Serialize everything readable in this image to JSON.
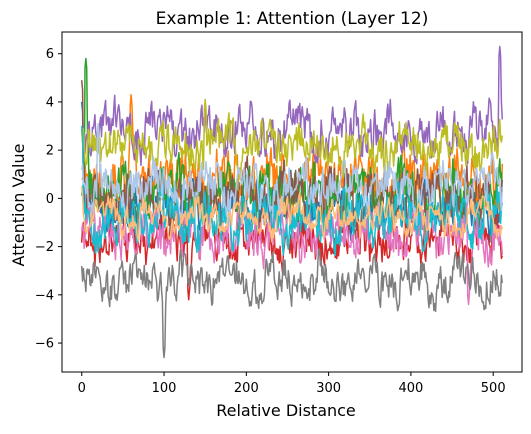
{
  "chart_data": {
    "type": "line",
    "title": "Example 1: Attention (Layer 12)",
    "xlabel": "Relative Distance",
    "ylabel": "Attention Value",
    "xlim": [
      -24,
      535
    ],
    "ylim": [
      -7.2,
      6.9
    ],
    "x_ticks": [
      0,
      100,
      200,
      300,
      400,
      500
    ],
    "y_ticks": [
      -6,
      -4,
      -2,
      0,
      2,
      4,
      6
    ],
    "y_tick_labels": [
      "−6",
      "−4",
      "−2",
      "0",
      "2",
      "4",
      "6"
    ],
    "x_range_data": [
      0,
      511
    ],
    "grid": false,
    "legend": "none",
    "series": [
      {
        "color": "#1f77b4",
        "center": -0.3,
        "amp": 1.4,
        "peak": [
          0,
          4.0
        ]
      },
      {
        "color": "#ff7f0e",
        "center": 0.8,
        "amp": 1.7,
        "peak": [
          60,
          4.3
        ]
      },
      {
        "color": "#2ca02c",
        "center": 0.2,
        "amp": 1.6,
        "peak": [
          5,
          5.8
        ]
      },
      {
        "color": "#d62728",
        "center": -1.8,
        "amp": 1.3,
        "peak": [
          130,
          -4.2
        ]
      },
      {
        "color": "#9467bd",
        "center": 2.8,
        "amp": 1.4,
        "peak": [
          508,
          6.3
        ]
      },
      {
        "color": "#8c564b",
        "center": 0.0,
        "amp": 1.6,
        "peak": [
          0,
          4.9
        ]
      },
      {
        "color": "#e377c2",
        "center": -1.5,
        "amp": 1.4,
        "peak": [
          470,
          -4.4
        ]
      },
      {
        "color": "#7f7f7f",
        "center": -3.4,
        "amp": 1.2,
        "peak": [
          100,
          -6.6
        ]
      },
      {
        "color": "#bcbd22",
        "center": 2.2,
        "amp": 1.3,
        "peak": [
          150,
          4.1
        ]
      },
      {
        "color": "#17becf",
        "center": -0.8,
        "amp": 1.5,
        "peak": [
          0,
          3.0
        ]
      },
      {
        "color": "#aec7e8",
        "center": 0.5,
        "amp": 1.3,
        "peak": [
          20,
          3.1
        ]
      },
      {
        "color": "#ffbb78",
        "center": -0.8,
        "amp": 0.8,
        "peak": [
          0,
          0.5
        ]
      }
    ]
  }
}
